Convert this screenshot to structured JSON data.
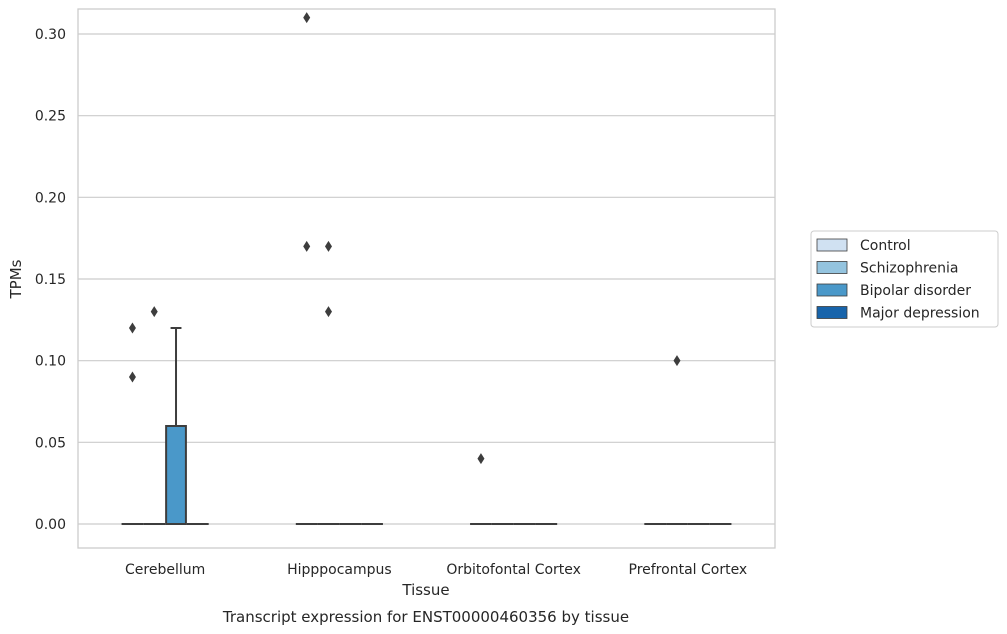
{
  "chart_data": {
    "type": "box",
    "title": "",
    "caption": "Transcript expression for ENST00000460356 by tissue",
    "xlabel": "Tissue",
    "ylabel": "TPMs",
    "ylim": [
      -0.015,
      0.325
    ],
    "yticks": [
      "0.00",
      "0.05",
      "0.10",
      "0.15",
      "0.20",
      "0.25",
      "0.30"
    ],
    "ytick_values": [
      0,
      0.05,
      0.1,
      0.15,
      0.2,
      0.25,
      0.3
    ],
    "grid": true,
    "legend_position": "right",
    "categories": [
      "Cerebellum",
      "Hipppocampus",
      "Orbitofontal Cortex",
      "Prefrontal Cortex"
    ],
    "series": [
      {
        "name": "Control",
        "color": "#d0e1f2",
        "boxes": [
          {
            "q1": 0,
            "median": 0,
            "q3": 0,
            "whisker_low": 0,
            "whisker_high": 0,
            "outliers": [
              0.09,
              0.12
            ]
          },
          {
            "q1": 0,
            "median": 0,
            "q3": 0,
            "whisker_low": 0,
            "whisker_high": 0,
            "outliers": [
              0.31,
              0.17
            ]
          },
          {
            "q1": 0,
            "median": 0,
            "q3": 0,
            "whisker_low": 0,
            "whisker_high": 0,
            "outliers": [
              0.04
            ]
          },
          {
            "q1": 0,
            "median": 0,
            "q3": 0,
            "whisker_low": 0,
            "whisker_high": 0,
            "outliers": []
          }
        ]
      },
      {
        "name": "Schizophrenia",
        "color": "#94c4df",
        "boxes": [
          {
            "q1": 0,
            "median": 0,
            "q3": 0,
            "whisker_low": 0,
            "whisker_high": 0,
            "outliers": [
              0.13
            ]
          },
          {
            "q1": 0,
            "median": 0,
            "q3": 0,
            "whisker_low": 0,
            "whisker_high": 0,
            "outliers": [
              0.17,
              0.13
            ]
          },
          {
            "q1": 0,
            "median": 0,
            "q3": 0,
            "whisker_low": 0,
            "whisker_high": 0,
            "outliers": []
          },
          {
            "q1": 0,
            "median": 0,
            "q3": 0,
            "whisker_low": 0,
            "whisker_high": 0,
            "outliers": [
              0.1
            ]
          }
        ]
      },
      {
        "name": "Bipolar disorder",
        "color": "#4a98c9",
        "boxes": [
          {
            "q1": 0,
            "median": 0,
            "q3": 0.06,
            "whisker_low": 0,
            "whisker_high": 0.12,
            "outliers": []
          },
          {
            "q1": 0,
            "median": 0,
            "q3": 0,
            "whisker_low": 0,
            "whisker_high": 0,
            "outliers": []
          },
          {
            "q1": 0,
            "median": 0,
            "q3": 0,
            "whisker_low": 0,
            "whisker_high": 0,
            "outliers": []
          },
          {
            "q1": 0,
            "median": 0,
            "q3": 0,
            "whisker_low": 0,
            "whisker_high": 0,
            "outliers": []
          }
        ]
      },
      {
        "name": "Major depression",
        "color": "#1764ab",
        "boxes": [
          {
            "q1": 0,
            "median": 0,
            "q3": 0,
            "whisker_low": 0,
            "whisker_high": 0,
            "outliers": []
          },
          {
            "q1": 0,
            "median": 0,
            "q3": 0,
            "whisker_low": 0,
            "whisker_high": 0,
            "outliers": []
          },
          {
            "q1": 0,
            "median": 0,
            "q3": 0,
            "whisker_low": 0,
            "whisker_high": 0,
            "outliers": []
          },
          {
            "q1": 0,
            "median": 0,
            "q3": 0,
            "whisker_low": 0,
            "whisker_high": 0,
            "outliers": []
          }
        ]
      }
    ]
  }
}
